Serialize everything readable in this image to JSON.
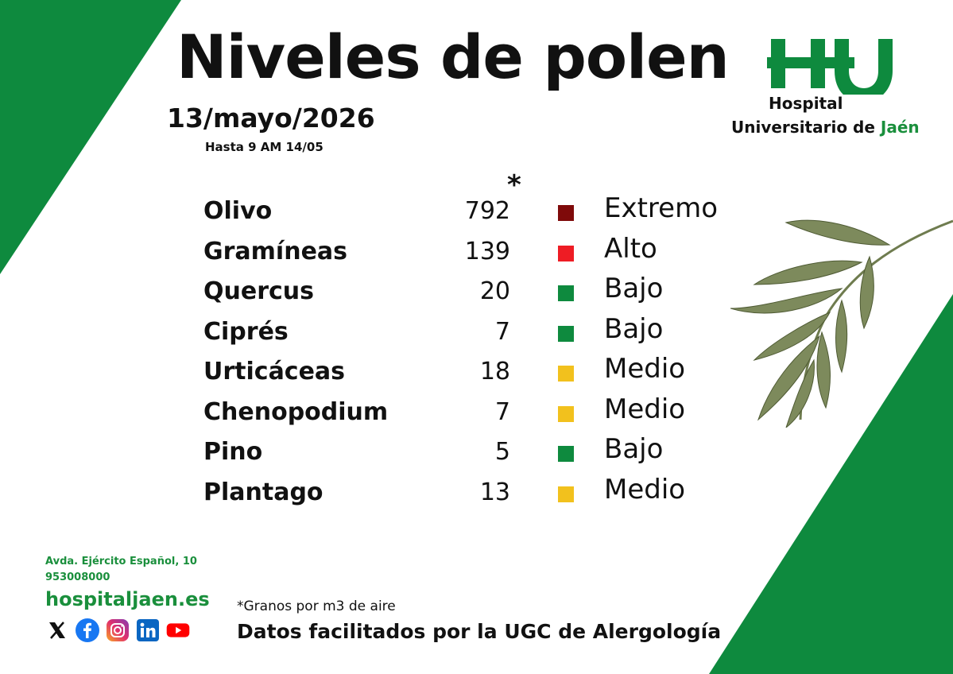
{
  "title": "Niveles de polen",
  "date": "13/mayo/2026",
  "valid_until": "Hasta 9 AM 14/05",
  "asterisk": "*",
  "logo": {
    "letters": "HUJ",
    "line1": "Hospital",
    "line2_prefix": "Universitario de ",
    "line2_highlight": "Jaén"
  },
  "pollen": [
    {
      "name": "Olivo",
      "count": "792",
      "level": "Extremo",
      "color": "#7f0a0a"
    },
    {
      "name": "Gramíneas",
      "count": "139",
      "level": "Alto",
      "color": "#ee1c24"
    },
    {
      "name": "Quercus",
      "count": "20",
      "level": "Bajo",
      "color": "#0e8a3e"
    },
    {
      "name": "Ciprés",
      "count": "7",
      "level": "Bajo",
      "color": "#0e8a3e"
    },
    {
      "name": "Urticáceas",
      "count": "18",
      "level": "Medio",
      "color": "#f2c11d"
    },
    {
      "name": "Chenopodium",
      "count": "7",
      "level": "Medio",
      "color": "#f2c11d"
    },
    {
      "name": "Pino",
      "count": "5",
      "level": "Bajo",
      "color": "#0e8a3e"
    },
    {
      "name": "Plantago",
      "count": "13",
      "level": "Medio",
      "color": "#f2c11d"
    }
  ],
  "contact": {
    "address": "Avda. Ejército Español, 10",
    "phone": "953008000",
    "website": "hospitaljaen.es"
  },
  "social_icons": [
    "x-icon",
    "facebook-icon",
    "instagram-icon",
    "linkedin-icon",
    "youtube-icon"
  ],
  "footnote": "*Granos por m3 de aire",
  "credits": "Datos facilitados por la UGC de Alergología",
  "colors": {
    "brand_green": "#0e8a3e",
    "text_green": "#1a8f3c"
  }
}
